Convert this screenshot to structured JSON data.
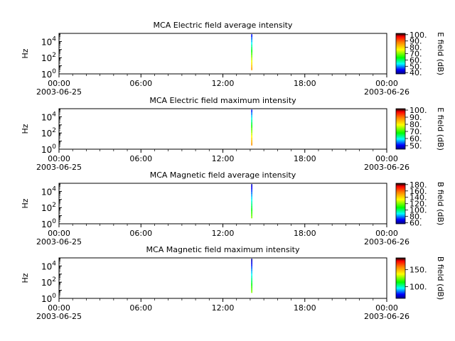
{
  "chart_data": [
    {
      "type": "heatmap",
      "title": "MCA  Electric field average intensity",
      "ylabel": "Hz",
      "ylim": [
        1,
        100000
      ],
      "ylog": true,
      "y_ticks": [
        {
          "exp": "0",
          "value": 1
        },
        {
          "exp": "2",
          "value": 100
        },
        {
          "exp": "4",
          "value": 10000
        }
      ],
      "x_ticks": [
        "00:00",
        "06:00",
        "12:00",
        "18:00",
        "00:00"
      ],
      "x_dates": [
        "2003-06-25",
        "2003-06-26"
      ],
      "x_range_hours": [
        0,
        24
      ],
      "colorbar": {
        "label": "E field (dB)",
        "range": [
          38,
          102
        ],
        "ticks": [
          "40.",
          "50.",
          "60.",
          "70.",
          "80.",
          "90.",
          "100."
        ],
        "tick_values": [
          40,
          50,
          60,
          70,
          80,
          90,
          100
        ]
      },
      "data_strip": {
        "time_hours": 14.1,
        "freq_range": [
          3,
          80000
        ],
        "intensity_bottom": 85,
        "intensity_top": 45
      }
    },
    {
      "type": "heatmap",
      "title": "MCA  Electric field maximum intensity",
      "ylabel": "Hz",
      "ylim": [
        1,
        100000
      ],
      "ylog": true,
      "y_ticks": [
        {
          "exp": "0",
          "value": 1
        },
        {
          "exp": "2",
          "value": 100
        },
        {
          "exp": "4",
          "value": 10000
        }
      ],
      "x_ticks": [
        "00:00",
        "06:00",
        "12:00",
        "18:00",
        "00:00"
      ],
      "x_dates": [
        "2003-06-25",
        "2003-06-26"
      ],
      "x_range_hours": [
        0,
        24
      ],
      "colorbar": {
        "label": "E field (dB)",
        "range": [
          45,
          102
        ],
        "ticks": [
          "50.",
          "60.",
          "70.",
          "80.",
          "90.",
          "100."
        ],
        "tick_values": [
          50,
          60,
          70,
          80,
          90,
          100
        ]
      },
      "data_strip": {
        "time_hours": 14.1,
        "freq_range": [
          3,
          80000
        ],
        "intensity_bottom": 88,
        "intensity_top": 52
      }
    },
    {
      "type": "heatmap",
      "title": "MCA  Magnetic field average intensity",
      "ylabel": "Hz",
      "ylim": [
        1,
        100000
      ],
      "ylog": true,
      "y_ticks": [
        {
          "exp": "0",
          "value": 1
        },
        {
          "exp": "2",
          "value": 100
        },
        {
          "exp": "4",
          "value": 10000
        }
      ],
      "x_ticks": [
        "00:00",
        "06:00",
        "12:00",
        "18:00",
        "00:00"
      ],
      "x_dates": [
        "2003-06-25",
        "2003-06-26"
      ],
      "x_range_hours": [
        0,
        24
      ],
      "colorbar": {
        "label": "B field (dB)",
        "range": [
          57,
          184
        ],
        "ticks": [
          "60.",
          "80.",
          "100.",
          "120.",
          "140.",
          "160.",
          "180."
        ],
        "tick_values": [
          60,
          80,
          100,
          120,
          140,
          160,
          180
        ]
      },
      "data_strip": {
        "time_hours": 14.1,
        "freq_range": [
          5,
          80000
        ],
        "intensity_bottom": 120,
        "intensity_top": 65
      }
    },
    {
      "type": "heatmap",
      "title": "MCA  Magnetic field maximum intensity",
      "ylabel": "Hz",
      "ylim": [
        1,
        100000
      ],
      "ylog": true,
      "y_ticks": [
        {
          "exp": "0",
          "value": 1
        },
        {
          "exp": "2",
          "value": 100
        },
        {
          "exp": "4",
          "value": 10000
        }
      ],
      "x_ticks": [
        "00:00",
        "06:00",
        "12:00",
        "18:00",
        "00:00"
      ],
      "x_dates": [
        "2003-06-25",
        "2003-06-26"
      ],
      "x_range_hours": [
        0,
        24
      ],
      "colorbar": {
        "label": "B field (dB)",
        "range": [
          65,
          185
        ],
        "ticks": [
          "100.",
          "150."
        ],
        "tick_values": [
          100,
          150
        ]
      },
      "data_strip": {
        "time_hours": 14.1,
        "freq_range": [
          5,
          80000
        ],
        "intensity_bottom": 125,
        "intensity_top": 70
      }
    }
  ]
}
